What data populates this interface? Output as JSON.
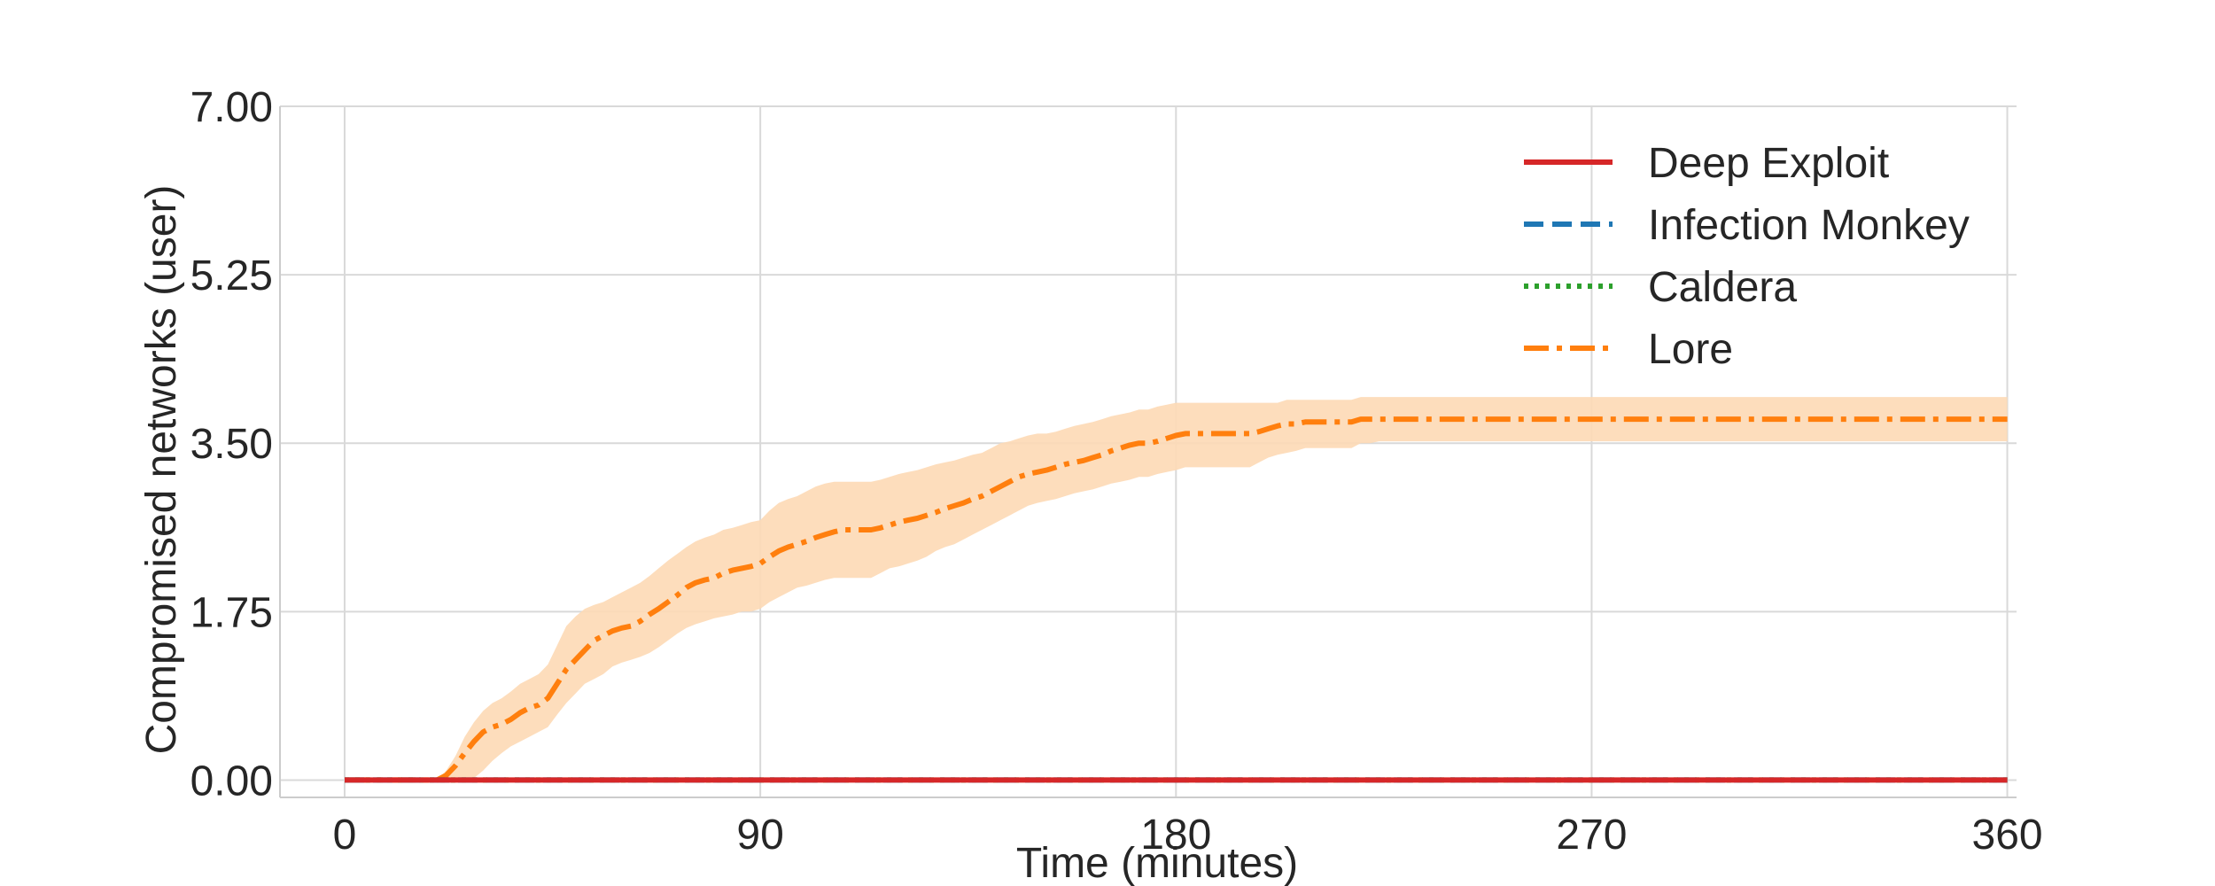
{
  "chart_data": {
    "type": "line",
    "xlabel": "Time (minutes)",
    "ylabel": "Compromised networks (user)",
    "xlim": [
      -14,
      362
    ],
    "ylim": [
      -0.18,
      7.0
    ],
    "x_ticks": [
      0,
      90,
      180,
      270,
      360
    ],
    "x_tick_labels": [
      "0",
      "90",
      "180",
      "270",
      "360"
    ],
    "y_ticks": [
      0,
      1.75,
      3.5,
      5.25,
      7.0
    ],
    "y_tick_labels": [
      "0.00",
      "1.75",
      "3.50",
      "5.25",
      "7.00"
    ],
    "grid": true,
    "legend_position": "top-right",
    "series": [
      {
        "name": "Deep Exploit",
        "color": "#d62728",
        "dash": "solid",
        "x": [
          0,
          360
        ],
        "y": [
          0,
          0
        ]
      },
      {
        "name": "Infection Monkey",
        "color": "#1f77b4",
        "dash": "dashed",
        "x": [
          0,
          360
        ],
        "y": [
          0,
          0
        ]
      },
      {
        "name": "Caldera",
        "color": "#2ca02c",
        "dash": "dotted",
        "x": [
          0,
          360
        ],
        "y": [
          0,
          0
        ]
      },
      {
        "name": "Lore",
        "color": "#ff7f0e",
        "dash": "dashdot",
        "band_color": "#fdd9b5",
        "x": [
          0,
          10,
          20,
          22,
          24,
          26,
          28,
          30,
          32,
          34,
          36,
          38,
          40,
          42,
          44,
          46,
          48,
          50,
          52,
          54,
          56,
          58,
          60,
          62,
          64,
          66,
          68,
          70,
          72,
          74,
          76,
          78,
          80,
          82,
          84,
          86,
          88,
          90,
          92,
          94,
          96,
          98,
          100,
          102,
          104,
          106,
          108,
          110,
          112,
          114,
          116,
          118,
          120,
          122,
          124,
          126,
          128,
          130,
          132,
          134,
          136,
          138,
          140,
          142,
          144,
          146,
          148,
          150,
          152,
          154,
          156,
          158,
          160,
          162,
          164,
          166,
          168,
          170,
          172,
          174,
          176,
          178,
          180,
          182,
          184,
          186,
          188,
          190,
          192,
          194,
          196,
          198,
          200,
          202,
          204,
          206,
          208,
          210,
          212,
          214,
          216,
          218,
          220,
          222,
          224,
          226,
          228,
          230,
          240,
          260,
          280,
          300,
          320,
          340,
          360
        ],
        "y": [
          0,
          0,
          0,
          0.05,
          0.15,
          0.28,
          0.4,
          0.5,
          0.55,
          0.58,
          0.63,
          0.7,
          0.75,
          0.78,
          0.85,
          1.0,
          1.15,
          1.25,
          1.35,
          1.45,
          1.5,
          1.55,
          1.58,
          1.6,
          1.65,
          1.72,
          1.78,
          1.85,
          1.92,
          2.0,
          2.05,
          2.08,
          2.1,
          2.15,
          2.18,
          2.2,
          2.22,
          2.25,
          2.32,
          2.38,
          2.42,
          2.45,
          2.48,
          2.52,
          2.55,
          2.58,
          2.6,
          2.6,
          2.6,
          2.6,
          2.62,
          2.65,
          2.68,
          2.7,
          2.72,
          2.75,
          2.78,
          2.82,
          2.85,
          2.88,
          2.92,
          2.95,
          3.0,
          3.05,
          3.1,
          3.15,
          3.18,
          3.2,
          3.22,
          3.25,
          3.28,
          3.3,
          3.32,
          3.35,
          3.38,
          3.42,
          3.45,
          3.48,
          3.5,
          3.5,
          3.52,
          3.55,
          3.58,
          3.6,
          3.6,
          3.6,
          3.6,
          3.6,
          3.6,
          3.6,
          3.6,
          3.62,
          3.65,
          3.68,
          3.7,
          3.7,
          3.72,
          3.72,
          3.72,
          3.72,
          3.72,
          3.72,
          3.75,
          3.75,
          3.75,
          3.75,
          3.75,
          3.75,
          3.75,
          3.75,
          3.75,
          3.75,
          3.75,
          3.75,
          3.75
        ],
        "y_upper": [
          0,
          0,
          0,
          0.1,
          0.25,
          0.45,
          0.6,
          0.72,
          0.8,
          0.85,
          0.92,
          1.0,
          1.05,
          1.1,
          1.2,
          1.4,
          1.6,
          1.7,
          1.78,
          1.82,
          1.85,
          1.9,
          1.95,
          2.0,
          2.05,
          2.12,
          2.2,
          2.28,
          2.35,
          2.42,
          2.48,
          2.52,
          2.55,
          2.6,
          2.62,
          2.65,
          2.68,
          2.7,
          2.8,
          2.88,
          2.92,
          2.95,
          3.0,
          3.05,
          3.08,
          3.1,
          3.1,
          3.1,
          3.1,
          3.1,
          3.12,
          3.15,
          3.18,
          3.2,
          3.22,
          3.25,
          3.28,
          3.3,
          3.32,
          3.35,
          3.38,
          3.4,
          3.45,
          3.5,
          3.52,
          3.55,
          3.58,
          3.6,
          3.6,
          3.62,
          3.65,
          3.68,
          3.7,
          3.72,
          3.75,
          3.78,
          3.8,
          3.82,
          3.85,
          3.85,
          3.88,
          3.9,
          3.92,
          3.92,
          3.92,
          3.92,
          3.92,
          3.92,
          3.92,
          3.92,
          3.92,
          3.92,
          3.92,
          3.92,
          3.95,
          3.95,
          3.95,
          3.95,
          3.95,
          3.95,
          3.95,
          3.95,
          3.98,
          3.98,
          3.98,
          3.98,
          3.98,
          3.98,
          3.98,
          3.98,
          3.98,
          3.98,
          3.98,
          3.98,
          3.98
        ],
        "y_lower": [
          0,
          0,
          0,
          0,
          0,
          0,
          0.02,
          0.1,
          0.2,
          0.28,
          0.35,
          0.4,
          0.45,
          0.5,
          0.55,
          0.68,
          0.8,
          0.9,
          1.0,
          1.05,
          1.1,
          1.18,
          1.22,
          1.25,
          1.28,
          1.32,
          1.38,
          1.45,
          1.52,
          1.58,
          1.62,
          1.65,
          1.68,
          1.7,
          1.72,
          1.75,
          1.75,
          1.78,
          1.85,
          1.9,
          1.95,
          2.0,
          2.02,
          2.05,
          2.08,
          2.1,
          2.1,
          2.1,
          2.1,
          2.1,
          2.15,
          2.2,
          2.22,
          2.25,
          2.28,
          2.32,
          2.38,
          2.42,
          2.45,
          2.5,
          2.55,
          2.6,
          2.65,
          2.7,
          2.75,
          2.8,
          2.85,
          2.88,
          2.9,
          2.92,
          2.95,
          2.98,
          3.0,
          3.02,
          3.05,
          3.08,
          3.1,
          3.12,
          3.15,
          3.15,
          3.18,
          3.2,
          3.22,
          3.25,
          3.25,
          3.25,
          3.25,
          3.25,
          3.25,
          3.25,
          3.25,
          3.3,
          3.35,
          3.38,
          3.4,
          3.42,
          3.45,
          3.45,
          3.45,
          3.45,
          3.45,
          3.45,
          3.5,
          3.5,
          3.52,
          3.52,
          3.52,
          3.52,
          3.52,
          3.52,
          3.52,
          3.52,
          3.52,
          3.52,
          3.52
        ]
      }
    ]
  }
}
